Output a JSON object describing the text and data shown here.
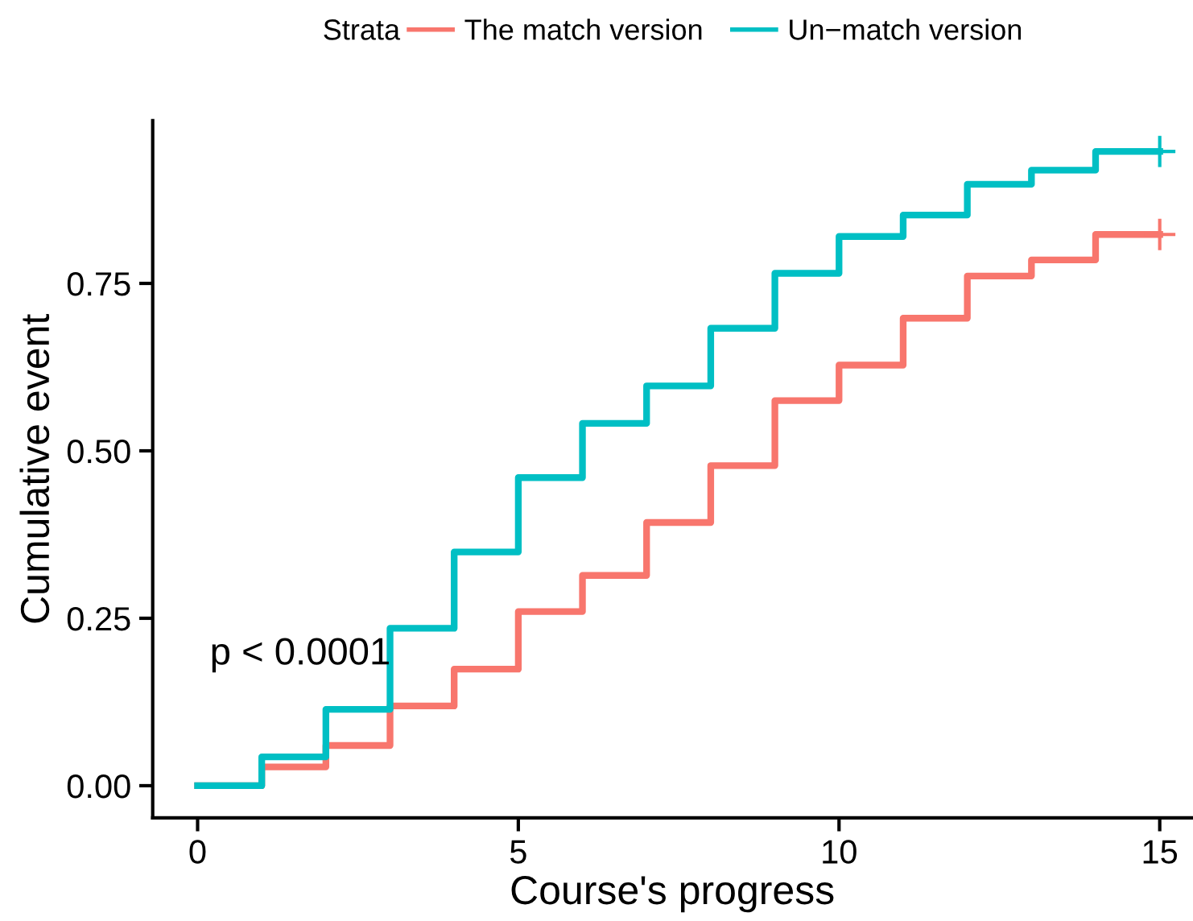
{
  "chart_data": {
    "type": "step",
    "xlabel": "Course's progress",
    "ylabel": "Cumulative event",
    "legend_title": "Strata",
    "legend": "top",
    "grid": false,
    "x": [
      0,
      1,
      2,
      3,
      4,
      5,
      6,
      7,
      8,
      9,
      10,
      11,
      12,
      13,
      14,
      15
    ],
    "series": [
      {
        "name": "The match version",
        "color": "#f8766d",
        "values": [
          0,
          0.028,
          0.06,
          0.119,
          0.174,
          0.26,
          0.314,
          0.393,
          0.478,
          0.575,
          0.628,
          0.698,
          0.761,
          0.785,
          0.823,
          0.823
        ]
      },
      {
        "name": "Un−match version",
        "color": "#00bfc4",
        "values": [
          0,
          0.043,
          0.114,
          0.235,
          0.349,
          0.46,
          0.541,
          0.597,
          0.683,
          0.765,
          0.82,
          0.852,
          0.898,
          0.919,
          0.947,
          0.947
        ]
      },
      {
        "type": "scatter",
        "marker": "cross",
        "color": "#f8766d",
        "x": [
          15
        ],
        "values": [
          0.823
        ]
      },
      {
        "type": "scatter",
        "marker": "cross",
        "color": "#00bfc4",
        "x": [
          15
        ],
        "values": [
          0.947
        ]
      }
    ],
    "xlim": [
      -0.7,
      15.5
    ],
    "ylim": [
      -0.048,
      0.993
    ],
    "xticks": [
      0,
      5,
      10,
      15
    ],
    "yticks": [
      {
        "value": 0,
        "label": "0.00"
      },
      {
        "value": 0.25,
        "label": "0.25"
      },
      {
        "value": 0.5,
        "label": "0.50"
      },
      {
        "value": 0.75,
        "label": "0.75"
      }
    ],
    "annotations": [
      "p < 0.0001"
    ]
  }
}
